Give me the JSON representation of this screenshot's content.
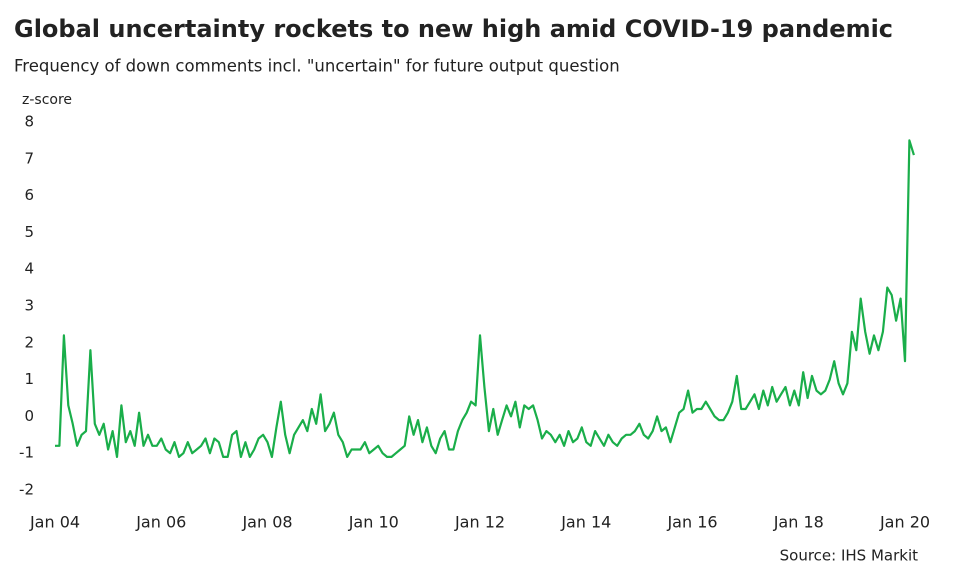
{
  "chart_data": {
    "type": "line",
    "title": "Global uncertainty rockets to new high amid COVID-19 pandemic",
    "subtitle": "Frequency of down comments incl. \"uncertain\" for future output question",
    "y_label": "z-score",
    "source": "Source: IHS Markit",
    "categories": [
      "Jan 04",
      null,
      null,
      null,
      null,
      null,
      null,
      null,
      null,
      null,
      null,
      null,
      null,
      null,
      null,
      null,
      null,
      null,
      null,
      null,
      null,
      null,
      null,
      null,
      "Jan 06",
      null,
      null,
      null,
      null,
      null,
      null,
      null,
      null,
      null,
      null,
      null,
      null,
      null,
      null,
      null,
      null,
      null,
      null,
      null,
      null,
      null,
      null,
      null,
      "Jan 08",
      null,
      null,
      null,
      null,
      null,
      null,
      null,
      null,
      null,
      null,
      null,
      null,
      null,
      null,
      null,
      null,
      null,
      null,
      null,
      null,
      null,
      null,
      null,
      "Jan 10",
      null,
      null,
      null,
      null,
      null,
      null,
      null,
      null,
      null,
      null,
      null,
      null,
      null,
      null,
      null,
      null,
      null,
      null,
      null,
      null,
      null,
      null,
      null,
      "Jan 12",
      null,
      null,
      null,
      null,
      null,
      null,
      null,
      null,
      null,
      null,
      null,
      null,
      null,
      null,
      null,
      null,
      null,
      null,
      null,
      null,
      null,
      null,
      null,
      "Jan 14",
      null,
      null,
      null,
      null,
      null,
      null,
      null,
      null,
      null,
      null,
      null,
      null,
      null,
      null,
      null,
      null,
      null,
      null,
      null,
      null,
      null,
      null,
      null,
      "Jan 16",
      null,
      null,
      null,
      null,
      null,
      null,
      null,
      null,
      null,
      null,
      null,
      null,
      null,
      null,
      null,
      null,
      null,
      null,
      null,
      null,
      null,
      null,
      null,
      "Jan 18",
      null,
      null,
      null,
      null,
      null,
      null,
      null,
      null,
      null,
      null,
      null,
      null,
      null,
      null,
      null,
      null,
      null,
      null,
      null,
      null,
      null,
      null,
      null,
      "Jan 20",
      null,
      null
    ],
    "values": [
      -0.8,
      -0.8,
      2.2,
      0.3,
      -0.2,
      -0.8,
      -0.5,
      -0.4,
      1.8,
      -0.2,
      -0.5,
      -0.2,
      -0.9,
      -0.4,
      -1.1,
      0.3,
      -0.7,
      -0.4,
      -0.8,
      0.1,
      -0.8,
      -0.5,
      -0.8,
      -0.8,
      -0.6,
      -0.9,
      -1.0,
      -0.7,
      -1.1,
      -1.0,
      -0.7,
      -1.0,
      -0.9,
      -0.8,
      -0.6,
      -1.0,
      -0.6,
      -0.7,
      -1.1,
      -1.1,
      -0.5,
      -0.4,
      -1.1,
      -0.7,
      -1.1,
      -0.9,
      -0.6,
      -0.5,
      -0.7,
      -1.1,
      -0.3,
      0.4,
      -0.5,
      -1.0,
      -0.5,
      -0.3,
      -0.1,
      -0.4,
      0.2,
      -0.2,
      0.6,
      -0.4,
      -0.2,
      0.1,
      -0.5,
      -0.7,
      -1.1,
      -0.9,
      -0.9,
      -0.9,
      -0.7,
      -1.0,
      -0.9,
      -0.8,
      -1.0,
      -1.1,
      -1.1,
      -1.0,
      -0.9,
      -0.8,
      0.0,
      -0.5,
      -0.1,
      -0.7,
      -0.3,
      -0.8,
      -1.0,
      -0.6,
      -0.4,
      -0.9,
      -0.9,
      -0.4,
      -0.1,
      0.1,
      0.4,
      0.3,
      2.2,
      0.8,
      -0.4,
      0.2,
      -0.5,
      -0.1,
      0.3,
      0.0,
      0.4,
      -0.3,
      0.3,
      0.2,
      0.3,
      -0.1,
      -0.6,
      -0.4,
      -0.5,
      -0.7,
      -0.5,
      -0.8,
      -0.4,
      -0.7,
      -0.6,
      -0.3,
      -0.7,
      -0.8,
      -0.4,
      -0.6,
      -0.8,
      -0.5,
      -0.7,
      -0.8,
      -0.6,
      -0.5,
      -0.5,
      -0.4,
      -0.2,
      -0.5,
      -0.6,
      -0.4,
      0.0,
      -0.4,
      -0.3,
      -0.7,
      -0.3,
      0.1,
      0.2,
      0.7,
      0.1,
      0.2,
      0.2,
      0.4,
      0.2,
      0.0,
      -0.1,
      -0.1,
      0.1,
      0.4,
      1.1,
      0.2,
      0.2,
      0.4,
      0.6,
      0.2,
      0.7,
      0.3,
      0.8,
      0.4,
      0.6,
      0.8,
      0.3,
      0.7,
      0.3,
      1.2,
      0.5,
      1.1,
      0.7,
      0.6,
      0.7,
      1.0,
      1.5,
      0.9,
      0.6,
      0.9,
      2.3,
      1.8,
      3.2,
      2.3,
      1.7,
      2.2,
      1.8,
      2.3,
      3.5,
      3.3,
      2.6,
      3.2,
      1.5,
      7.5,
      7.1
    ],
    "color": "#1aae4a",
    "ylim": [
      -2,
      8
    ],
    "yticks": [
      -2,
      -1,
      0,
      1,
      2,
      3,
      4,
      5,
      6,
      7,
      8
    ],
    "grid": false
  }
}
